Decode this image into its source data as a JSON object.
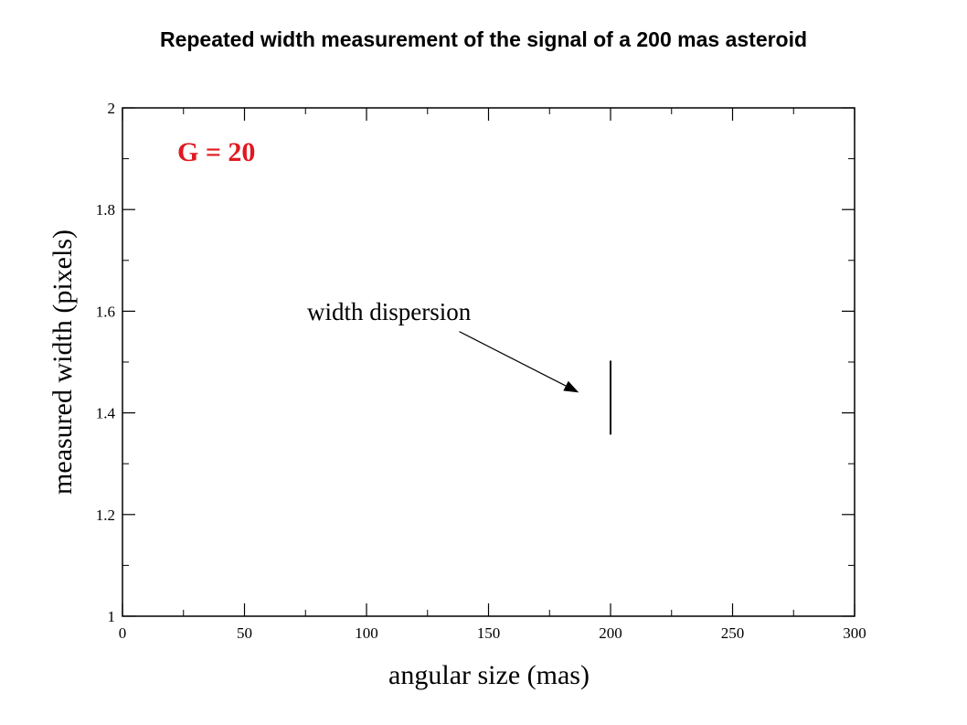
{
  "title": "Repeated width measurement of the signal of a 200 mas asteroid",
  "colors": {
    "magnitude_label": "#e0191f",
    "axes": "#000000",
    "points": "#000000"
  },
  "chart_data": {
    "type": "scatter",
    "title": "Repeated width measurement of the signal of a 200 mas asteroid",
    "xlabel": "angular size (mas)",
    "ylabel": "measured width (pixels)",
    "xlim": [
      0,
      300
    ],
    "ylim": [
      1,
      2
    ],
    "x_ticks": [
      0,
      50,
      100,
      150,
      200,
      250,
      300
    ],
    "x_tick_labels": [
      "0",
      "50",
      "100",
      "150",
      "200",
      "250",
      "300"
    ],
    "y_ticks": [
      1,
      1.2,
      1.4,
      1.6,
      1.8,
      2
    ],
    "y_tick_labels": [
      "1",
      "1.2",
      "1.4",
      "1.6",
      "1.8",
      "2"
    ],
    "grid": false,
    "annotations": [
      {
        "text": "G = 20",
        "kind": "label",
        "color": "#e0191f"
      },
      {
        "text": "width dispersion",
        "kind": "arrow",
        "from": [
          138,
          1.56
        ],
        "to": [
          187,
          1.44
        ]
      }
    ],
    "series": [
      {
        "x": [
          200,
          200,
          200,
          200,
          200,
          200,
          200,
          200,
          200,
          200,
          200,
          200,
          200,
          200,
          200,
          200,
          200,
          200,
          200,
          200,
          200,
          200,
          200,
          200,
          200,
          200,
          200,
          200,
          200,
          200
        ],
        "y": [
          1.36,
          1.365,
          1.37,
          1.375,
          1.38,
          1.385,
          1.39,
          1.395,
          1.4,
          1.405,
          1.41,
          1.415,
          1.42,
          1.425,
          1.43,
          1.435,
          1.44,
          1.445,
          1.45,
          1.455,
          1.46,
          1.465,
          1.47,
          1.475,
          1.48,
          1.485,
          1.49,
          1.495,
          1.5,
          1.387
        ]
      }
    ]
  }
}
